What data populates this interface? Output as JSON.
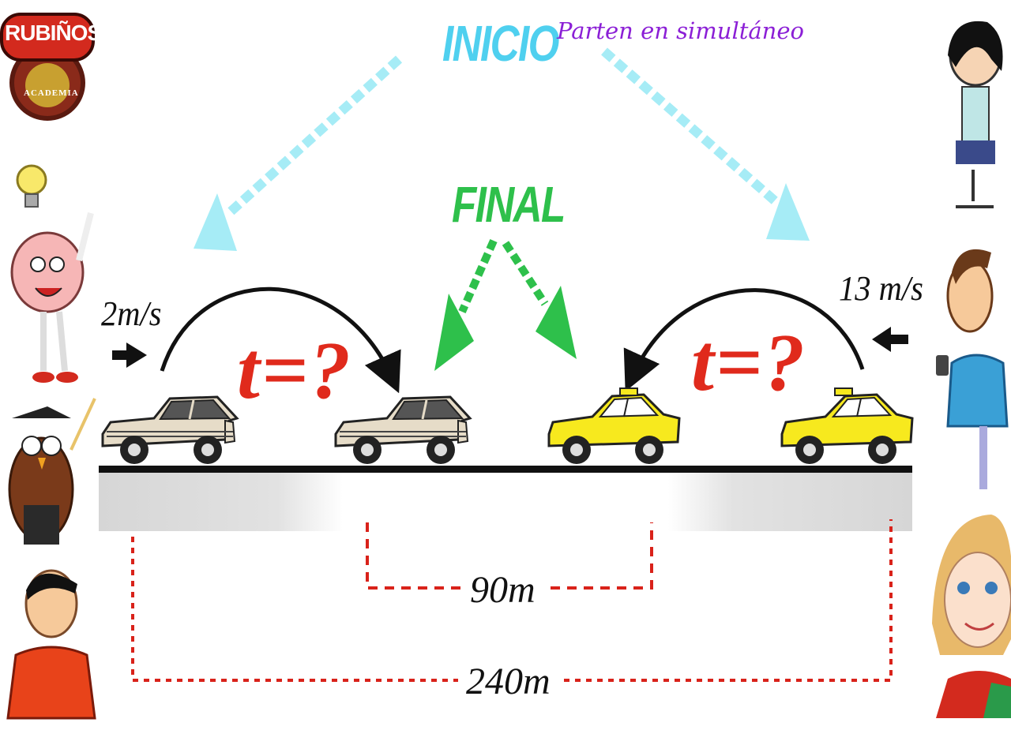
{
  "logo": {
    "text_top": "RUBIÑOS",
    "text_bottom": "ACADEMIA"
  },
  "labels": {
    "start": "INICIO",
    "start_note": "Parten en simultáneo",
    "end": "FINAL",
    "speed_left": "2m/s",
    "speed_right": "13 m/s",
    "time_left": "t=?",
    "time_right": "t=?",
    "distance_inner": "90m",
    "distance_total": "240m"
  },
  "colors": {
    "start_arrow": "#a6ecf6",
    "start_text": "#4fd0ef",
    "end_arrow": "#2ec04b",
    "time_text": "#e02a1c",
    "distance_line": "#d9221a",
    "subtitle": "#8b1fd6",
    "taxi": "#f7e91e",
    "sedan": "#e6dcc8"
  }
}
